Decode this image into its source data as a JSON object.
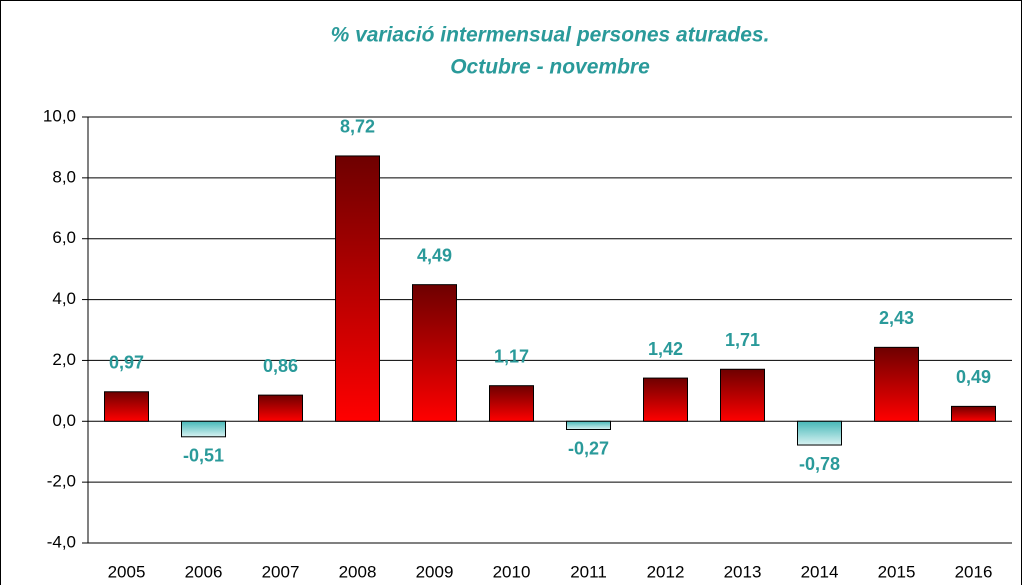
{
  "chart_data": {
    "type": "bar",
    "title": "% variació intermensual persones aturades.",
    "subtitle": "Octubre - novembre",
    "categories": [
      "2005",
      "2006",
      "2007",
      "2008",
      "2009",
      "2010",
      "2011",
      "2012",
      "2013",
      "2014",
      "2015",
      "2016"
    ],
    "values": [
      0.97,
      -0.51,
      0.86,
      8.72,
      4.49,
      1.17,
      -0.27,
      1.42,
      1.71,
      -0.78,
      2.43,
      0.49
    ],
    "value_labels": [
      "0,97",
      "-0,51",
      "0,86",
      "8,72",
      "4,49",
      "1,17",
      "-0,27",
      "1,42",
      "1,71",
      "-0,78",
      "2,43",
      "0,49"
    ],
    "color": "#ff0000",
    "negative_color": "#46b8b8",
    "ylim": [
      -4,
      10
    ],
    "yticks": [
      {
        "value": -4,
        "label": "-4,0"
      },
      {
        "value": -2,
        "label": "-2,0"
      },
      {
        "value": 0,
        "label": "0,0"
      },
      {
        "value": 2,
        "label": "2,0"
      },
      {
        "value": 4,
        "label": "4,0"
      },
      {
        "value": 6,
        "label": "6,0"
      },
      {
        "value": 8,
        "label": "8,0"
      },
      {
        "value": 10,
        "label": "10,0"
      }
    ],
    "grid": true
  }
}
